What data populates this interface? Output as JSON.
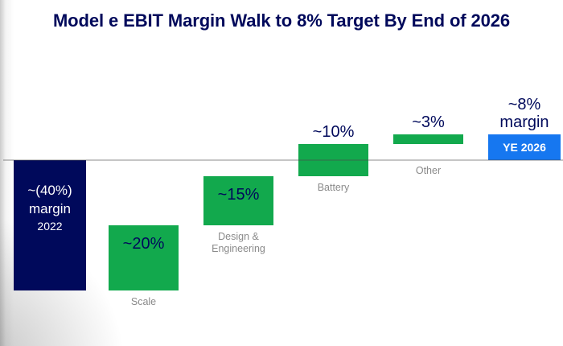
{
  "slide": {
    "title": "Model e EBIT Margin Walk to 8% Target By End of 2026"
  },
  "colors": {
    "navy": "#00095B",
    "green": "#12A94D",
    "bright_blue": "#1677F0",
    "white": "#FFFFFF",
    "category_label_gray": "#8A8A8A",
    "axis_line_gray": "#B3B3B3"
  },
  "chart_data": {
    "type": "bar",
    "subtype": "waterfall",
    "title": "Model e EBIT Margin Walk to 8% Target By End of 2026",
    "unit": "EBIT margin, percent",
    "ylim": [
      -40,
      10
    ],
    "zero_line": true,
    "grid": false,
    "legend": false,
    "bars": [
      {
        "id": "start-2022",
        "category": "2022",
        "from_pct": 0,
        "to_pct": -40,
        "value": -40,
        "value_text": "~(40%)",
        "fill": "navy",
        "inside_lines": [
          "~(40%)",
          "margin",
          "2022"
        ],
        "inside_text_color": "white"
      },
      {
        "id": "scale",
        "category": "Scale",
        "from_pct": -40,
        "to_pct": -20,
        "value": 20,
        "value_text": "~20%",
        "fill": "green",
        "inside_lines": [
          "~20%"
        ],
        "inside_text_color": "navy",
        "category_lines": [
          "Scale"
        ],
        "category_position": "below-bar"
      },
      {
        "id": "design-engineering",
        "category": "Design & Engineering",
        "from_pct": -20,
        "to_pct": -5,
        "value": 15,
        "value_text": "~15%",
        "fill": "green",
        "inside_lines": [
          "~15%"
        ],
        "inside_text_color": "navy",
        "category_lines": [
          "Design &",
          "Engineering"
        ],
        "category_position": "below-bar"
      },
      {
        "id": "battery",
        "category": "Battery",
        "from_pct": -5,
        "to_pct": 5,
        "value": 10,
        "value_text": "~10%",
        "fill": "green",
        "above_lines": [
          "~10%"
        ],
        "category_lines": [
          "Battery"
        ],
        "category_position": "below-bar"
      },
      {
        "id": "other",
        "category": "Other",
        "from_pct": 5,
        "to_pct": 8,
        "value": 3,
        "value_text": "~3%",
        "fill": "green",
        "above_lines": [
          "~3%"
        ],
        "category_lines": [
          "Other"
        ],
        "category_position": "below-axis"
      },
      {
        "id": "ye-2026",
        "category": "YE 2026",
        "from_pct": 0,
        "to_pct": 8,
        "value": 8,
        "value_text": "~8%",
        "fill": "bright_blue",
        "inside_lines": [
          "YE 2026"
        ],
        "inside_text_color": "white",
        "above_lines": [
          "~8%",
          "margin"
        ]
      }
    ]
  }
}
